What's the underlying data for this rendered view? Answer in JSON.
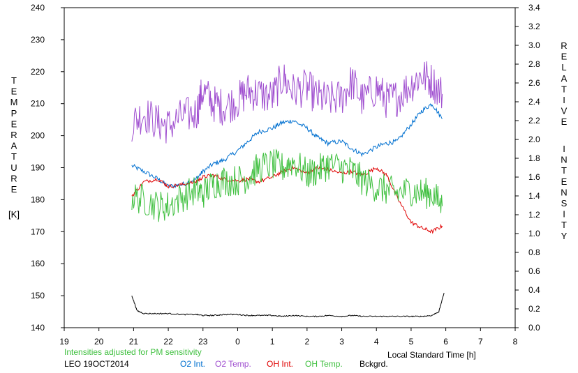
{
  "chart_data": {
    "type": "line",
    "xlabel": "Local Standard Time [h]",
    "x_ticks": [
      "19",
      "20",
      "21",
      "22",
      "23",
      "0",
      "1",
      "2",
      "3",
      "4",
      "5",
      "6",
      "7",
      "8"
    ],
    "y_left": {
      "label_letters": [
        "T",
        "E",
        "M",
        "P",
        "E",
        "R",
        "A",
        "T",
        "U",
        "R",
        "E"
      ],
      "unit": "[K]",
      "range": [
        140,
        240
      ],
      "ticks": [
        "140",
        "150",
        "160",
        "170",
        "180",
        "190",
        "200",
        "210",
        "220",
        "230",
        "240"
      ]
    },
    "y_right": {
      "label_word1": [
        "R",
        "E",
        "L",
        "A",
        "T",
        "I",
        "V",
        "E"
      ],
      "label_word2": [
        "I",
        "N",
        "T",
        "E",
        "N",
        "S",
        "I",
        "T",
        "Y"
      ],
      "range": [
        0,
        3.4
      ],
      "ticks": [
        "0.0",
        "0.2",
        "0.4",
        "0.6",
        "0.8",
        "1.0",
        "1.2",
        "1.4",
        "1.6",
        "1.8",
        "2.0",
        "2.2",
        "2.4",
        "2.6",
        "2.8",
        "3.0",
        "3.2",
        "3.4"
      ]
    },
    "x_range_hours": [
      19,
      32
    ],
    "series": [
      {
        "name": "O2 Int.",
        "axis": "right",
        "color": "#0070d0",
        "x": [
          20.95,
          21.3,
          21.7,
          22.0,
          22.4,
          22.8,
          23.0,
          23.3,
          23.6,
          24.0,
          24.3,
          24.6,
          25.0,
          25.3,
          25.6,
          26.0,
          26.3,
          26.6,
          27.0,
          27.3,
          27.6,
          28.0,
          28.3,
          28.6,
          29.0,
          29.3,
          29.6,
          29.9
        ],
        "values": [
          1.72,
          1.66,
          1.58,
          1.5,
          1.52,
          1.58,
          1.66,
          1.74,
          1.78,
          1.88,
          1.98,
          2.08,
          2.12,
          2.18,
          2.2,
          2.12,
          2.02,
          1.96,
          1.98,
          1.9,
          1.84,
          1.92,
          1.96,
          1.98,
          2.16,
          2.3,
          2.38,
          2.22
        ]
      },
      {
        "name": "O2 Temp.",
        "axis": "left",
        "color": "#a050d0",
        "x": [
          20.95,
          21.3,
          21.7,
          22.0,
          22.4,
          22.8,
          23.0,
          23.3,
          23.6,
          24.0,
          24.3,
          24.6,
          25.0,
          25.3,
          25.6,
          26.0,
          26.3,
          26.6,
          27.0,
          27.3,
          27.6,
          28.0,
          28.3,
          28.6,
          29.0,
          29.3,
          29.6,
          29.9
        ],
        "values": [
          204,
          207,
          204,
          203,
          206,
          207,
          214,
          210,
          209,
          211,
          214,
          213,
          212,
          218,
          214,
          215,
          212,
          211,
          212,
          217,
          211,
          215,
          211,
          212,
          216,
          219,
          217,
          213
        ]
      },
      {
        "name": "OH Int.",
        "axis": "right",
        "color": "#e00000",
        "x": [
          20.95,
          21.3,
          21.7,
          22.0,
          22.4,
          22.8,
          23.0,
          23.3,
          23.6,
          24.0,
          24.3,
          24.6,
          25.0,
          25.3,
          25.6,
          26.0,
          26.3,
          26.6,
          27.0,
          27.3,
          27.6,
          28.0,
          28.3,
          28.6,
          29.0,
          29.3,
          29.6,
          29.9
        ],
        "values": [
          1.4,
          1.55,
          1.58,
          1.5,
          1.52,
          1.55,
          1.6,
          1.62,
          1.58,
          1.56,
          1.58,
          1.55,
          1.6,
          1.66,
          1.7,
          1.64,
          1.7,
          1.68,
          1.64,
          1.66,
          1.62,
          1.7,
          1.62,
          1.38,
          1.12,
          1.06,
          1.02,
          1.08
        ]
      },
      {
        "name": "OH Temp.",
        "axis": "left",
        "color": "#40c040",
        "x": [
          20.95,
          21.3,
          21.7,
          22.0,
          22.4,
          22.8,
          23.0,
          23.3,
          23.6,
          24.0,
          24.3,
          24.6,
          25.0,
          25.3,
          25.6,
          26.0,
          26.3,
          26.6,
          27.0,
          27.3,
          27.6,
          28.0,
          28.3,
          28.6,
          29.0,
          29.3,
          29.6,
          29.9
        ],
        "values": [
          181,
          180,
          178,
          178,
          181,
          183,
          182,
          185,
          186,
          186,
          187,
          190,
          191,
          190,
          192,
          188,
          189,
          191,
          190,
          189,
          186,
          184,
          183,
          182,
          183,
          182,
          182,
          178
        ]
      },
      {
        "name": "Bckgrd.",
        "axis": "right",
        "color": "#000000",
        "x": [
          20.95,
          21.1,
          21.3,
          21.7,
          22.0,
          22.4,
          22.8,
          23.0,
          23.3,
          23.6,
          24.0,
          24.3,
          24.6,
          25.0,
          25.3,
          25.6,
          26.0,
          26.3,
          26.6,
          27.0,
          27.3,
          27.6,
          28.0,
          28.3,
          28.6,
          29.0,
          29.3,
          29.6,
          29.8,
          29.95
        ],
        "values": [
          0.34,
          0.18,
          0.15,
          0.15,
          0.15,
          0.14,
          0.14,
          0.13,
          0.13,
          0.14,
          0.14,
          0.13,
          0.13,
          0.13,
          0.12,
          0.13,
          0.12,
          0.12,
          0.13,
          0.12,
          0.13,
          0.12,
          0.12,
          0.12,
          0.12,
          0.12,
          0.12,
          0.13,
          0.17,
          0.37
        ]
      }
    ]
  },
  "footer": {
    "note": "Intensities adjusted for PM sensitivity",
    "station": "LEO 19OCT2014",
    "colors": {
      "note": "#40c040"
    }
  }
}
